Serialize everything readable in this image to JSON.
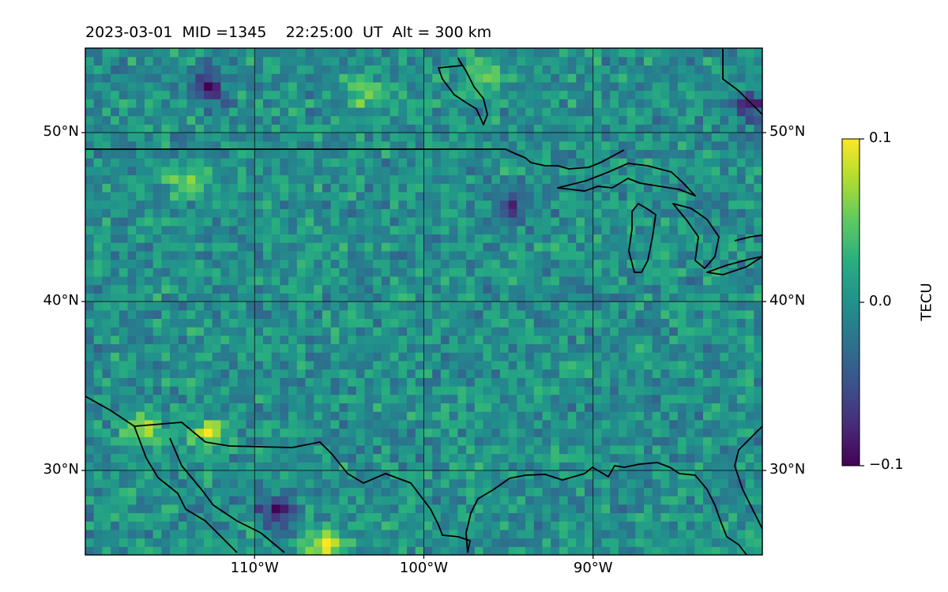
{
  "chart_data": {
    "type": "heatmap",
    "title": "2023-03-01  MID =1345    22:25:00  UT  Alt = 300 km",
    "xlabel": "",
    "ylabel": "",
    "xlim": [
      -120,
      -80
    ],
    "ylim": [
      25,
      55
    ],
    "x_ticks": [
      {
        "value": -110,
        "label": "110°W"
      },
      {
        "value": -100,
        "label": "100°W"
      },
      {
        "value": -90,
        "label": "90°W"
      }
    ],
    "y_ticks": [
      {
        "value": 30,
        "label": "30°N"
      },
      {
        "value": 40,
        "label": "40°N"
      },
      {
        "value": 50,
        "label": "50°N"
      }
    ],
    "grid": true,
    "colorbar": {
      "label": "TECU",
      "min": -0.1,
      "max": 0.1,
      "ticks": [
        {
          "value": 0.1,
          "label": "0.1"
        },
        {
          "value": 0.0,
          "label": "0.0"
        },
        {
          "value": -0.1,
          "label": "−0.1"
        }
      ],
      "colormap": "viridis"
    },
    "field_summary": {
      "background_mean": 0.0,
      "noise_amplitude": 0.04,
      "features": [
        {
          "lon": -106,
          "lat": 25.3,
          "value": 0.1
        },
        {
          "lon": -113,
          "lat": 32.0,
          "value": 0.08
        },
        {
          "lon": -117,
          "lat": 32.2,
          "value": 0.08
        },
        {
          "lon": -114,
          "lat": 46.8,
          "value": 0.07
        },
        {
          "lon": -104,
          "lat": 52.2,
          "value": 0.06
        },
        {
          "lon": -97,
          "lat": 53.3,
          "value": 0.06
        },
        {
          "lon": -113,
          "lat": 52.5,
          "value": -0.09
        },
        {
          "lon": -109,
          "lat": 27.3,
          "value": -0.09
        },
        {
          "lon": -81,
          "lat": 51.2,
          "value": -0.08
        },
        {
          "lon": -95,
          "lat": 45.5,
          "value": -0.07
        }
      ]
    }
  }
}
